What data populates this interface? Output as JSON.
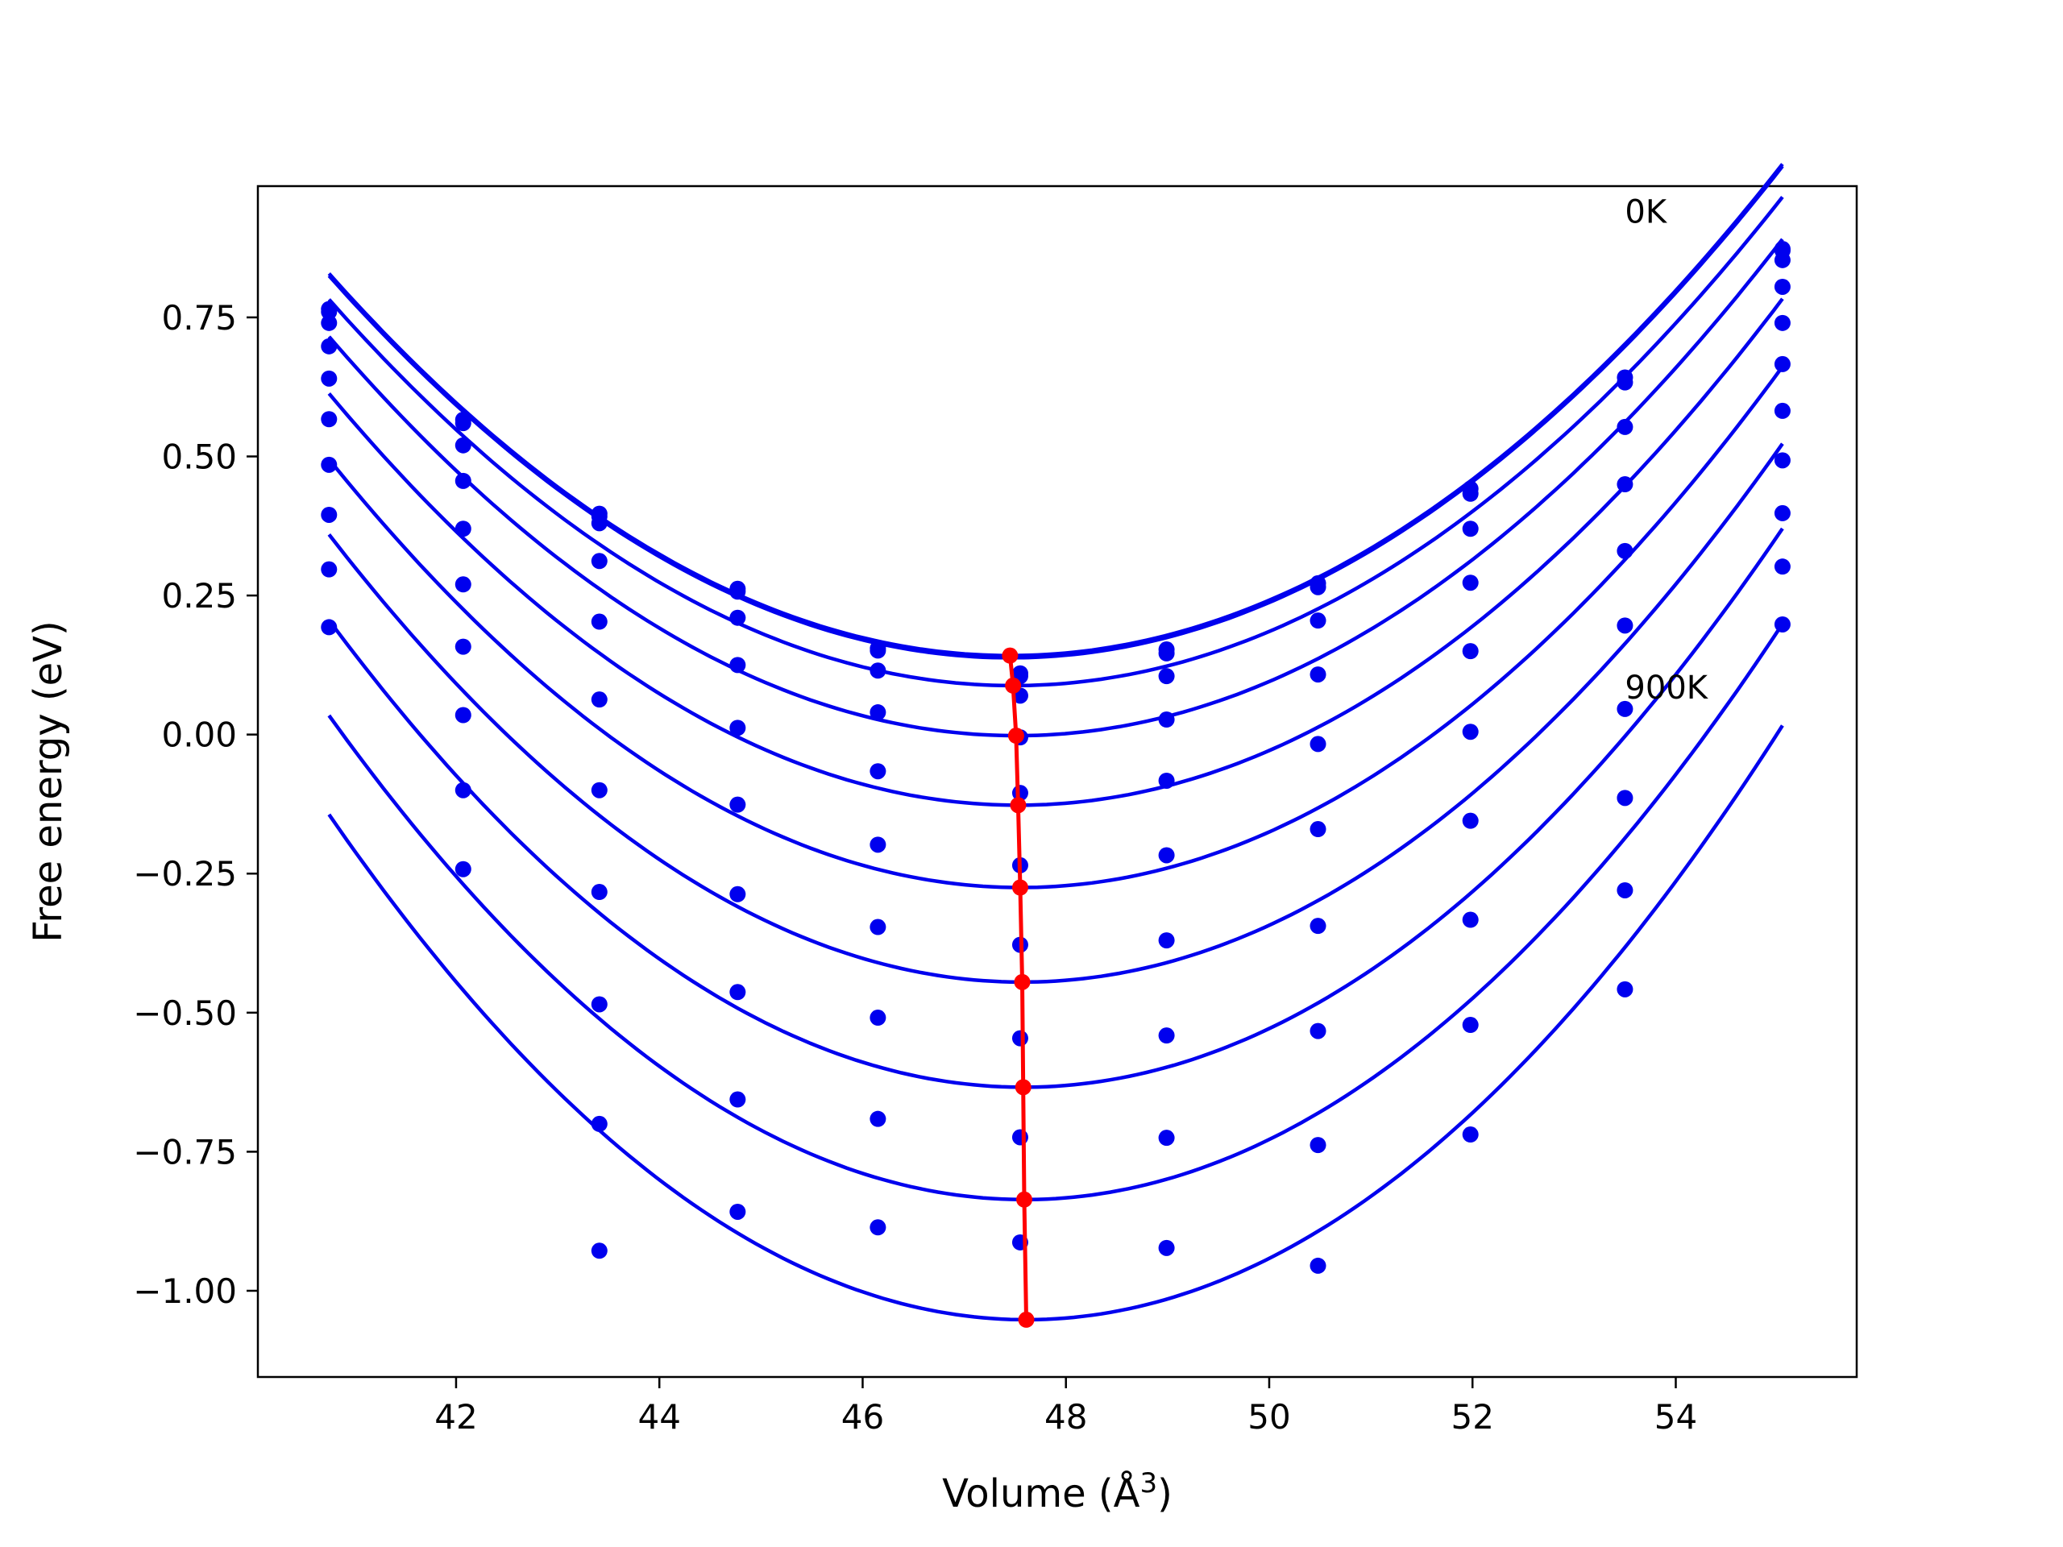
{
  "chart_data": {
    "type": "scatter",
    "title": "",
    "xlabel": "Volume (Å",
    "xlabel_sup": "3",
    "xlabel_close": ")",
    "ylabel": "Free energy (eV)",
    "xlim": [
      40.05,
      55.78
    ],
    "ylim": [
      -1.155,
      0.986
    ],
    "x_ticks": [
      42,
      44,
      46,
      48,
      50,
      52,
      54
    ],
    "y_ticks": [
      0.75,
      0.5,
      0.25,
      0.0,
      -0.25,
      -0.5,
      -0.75,
      -1.0
    ],
    "grid": false,
    "annotations": [
      {
        "text": "0K",
        "x": 53.5,
        "y": 0.92
      },
      {
        "text": "900K",
        "x": 53.5,
        "y": 0.065
      }
    ],
    "colors": {
      "series": "#0000ee",
      "minimum_path": "#ff0000"
    },
    "volumes": [
      40.75,
      42.07,
      43.41,
      44.77,
      46.15,
      47.55,
      48.99,
      50.48,
      51.98,
      53.5,
      55.05
    ],
    "series": [
      {
        "temperature": "0K",
        "values": [
          0.765,
          0.566,
          0.397,
          0.262,
          0.155,
          0.11,
          0.153,
          0.272,
          0.442,
          0.642,
          0.873
        ]
      },
      {
        "values": [
          0.76,
          0.56,
          0.392,
          0.257,
          0.151,
          0.105,
          0.146,
          0.265,
          0.433,
          0.633,
          0.87
        ]
      },
      {
        "values": [
          0.74,
          0.52,
          0.38,
          0.21,
          0.115,
          0.07,
          0.105,
          0.205,
          0.37,
          0.553,
          0.853
        ]
      },
      {
        "values": [
          0.698,
          0.456,
          0.312,
          0.125,
          0.04,
          -0.005,
          0.027,
          0.108,
          0.273,
          0.45,
          0.805
        ]
      },
      {
        "values": [
          0.64,
          0.37,
          0.203,
          0.012,
          -0.066,
          -0.105,
          -0.083,
          -0.017,
          0.15,
          0.33,
          0.74
        ]
      },
      {
        "values": [
          0.567,
          0.27,
          0.063,
          -0.126,
          -0.198,
          -0.235,
          -0.217,
          -0.17,
          0.005,
          0.196,
          0.666
        ]
      },
      {
        "values": [
          0.485,
          0.158,
          -0.1,
          -0.287,
          -0.346,
          -0.378,
          -0.37,
          -0.344,
          -0.155,
          0.046,
          0.582
        ]
      },
      {
        "values": [
          0.395,
          0.035,
          -0.283,
          -0.463,
          -0.509,
          -0.546,
          -0.541,
          -0.533,
          -0.333,
          -0.114,
          0.493
        ]
      },
      {
        "values": [
          0.297,
          -0.1,
          -0.485,
          -0.656,
          -0.691,
          -0.724,
          -0.725,
          -0.738,
          -0.522,
          -0.28,
          0.398
        ]
      },
      {
        "temperature": "900K",
        "values": [
          0.193,
          -0.242,
          -0.7,
          -0.858,
          -0.886,
          -0.913,
          -0.923,
          -0.955,
          -0.719,
          -0.458,
          0.302
        ]
      },
      {
        "values": [
          null,
          null,
          -0.928,
          null,
          null,
          null,
          null,
          null,
          null,
          null,
          0.198
        ]
      }
    ],
    "fit_curves": [
      {
        "v0": 47.45,
        "e0": 0.142,
        "k": 0.0153
      },
      {
        "v0": 47.45,
        "e0": 0.138,
        "k": 0.0153
      },
      {
        "v0": 47.48,
        "e0": 0.088,
        "k": 0.01533
      },
      {
        "v0": 47.51,
        "e0": -0.002,
        "k": 0.0157
      },
      {
        "v0": 47.53,
        "e0": -0.127,
        "k": 0.0161
      },
      {
        "v0": 47.55,
        "e0": -0.275,
        "k": 0.01665
      },
      {
        "v0": 47.57,
        "e0": -0.445,
        "k": 0.0173
      },
      {
        "v0": 47.58,
        "e0": -0.634,
        "k": 0.018
      },
      {
        "v0": 47.59,
        "e0": -0.836,
        "k": 0.0186
      },
      {
        "v0": 47.61,
        "e0": -1.052,
        "k": 0.0193
      }
    ],
    "minimum_path": {
      "x": [
        47.45,
        47.48,
        47.51,
        47.53,
        47.55,
        47.57,
        47.58,
        47.59,
        47.61
      ],
      "y": [
        0.142,
        0.088,
        -0.002,
        -0.127,
        -0.275,
        -0.445,
        -0.634,
        -0.836,
        -1.052
      ]
    }
  }
}
